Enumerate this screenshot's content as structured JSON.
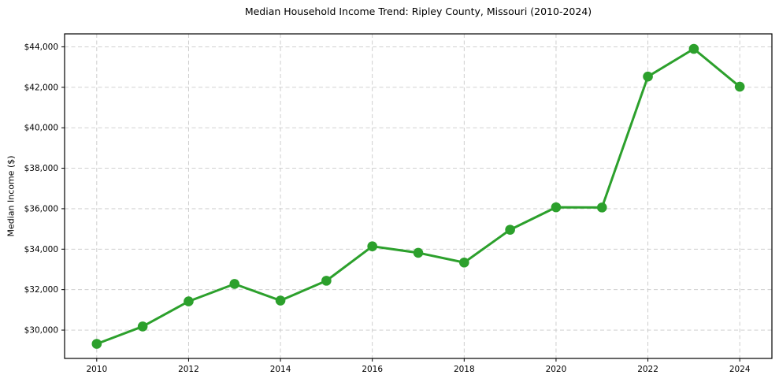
{
  "chart_data": {
    "type": "line",
    "title": "Median Household Income Trend: Ripley County, Missouri (2010-2024)",
    "xlabel": "",
    "ylabel": "Median Income ($)",
    "series": [
      {
        "name": "Median Household Income",
        "x": [
          2010,
          2011,
          2012,
          2013,
          2014,
          2015,
          2016,
          2017,
          2018,
          2019,
          2020,
          2021,
          2022,
          2023,
          2024
        ],
        "values": [
          29320,
          30180,
          31420,
          32280,
          31460,
          32440,
          34140,
          33820,
          33340,
          34960,
          36070,
          36060,
          42530,
          43900,
          42030
        ]
      }
    ],
    "xlim": [
      2009.3,
      2024.7
    ],
    "ylim": [
      28600,
      44640
    ],
    "xticks": {
      "values": [
        2010,
        2012,
        2014,
        2016,
        2018,
        2020,
        2022,
        2024
      ],
      "labels": [
        "2010",
        "2012",
        "2014",
        "2016",
        "2018",
        "2020",
        "2022",
        "2024"
      ]
    },
    "yticks": {
      "values": [
        30000,
        32000,
        34000,
        36000,
        38000,
        40000,
        42000,
        44000
      ],
      "labels": [
        "$30,000",
        "$32,000",
        "$34,000",
        "$36,000",
        "$38,000",
        "$40,000",
        "$42,000",
        "$44,000"
      ]
    },
    "grid": true,
    "legend": "none",
    "colors": {
      "line": "#2ca02c",
      "marker": "#2ca02c",
      "grid": "#c9c9c9",
      "frame": "#000000",
      "background": "#ffffff",
      "text": "#000000"
    }
  }
}
